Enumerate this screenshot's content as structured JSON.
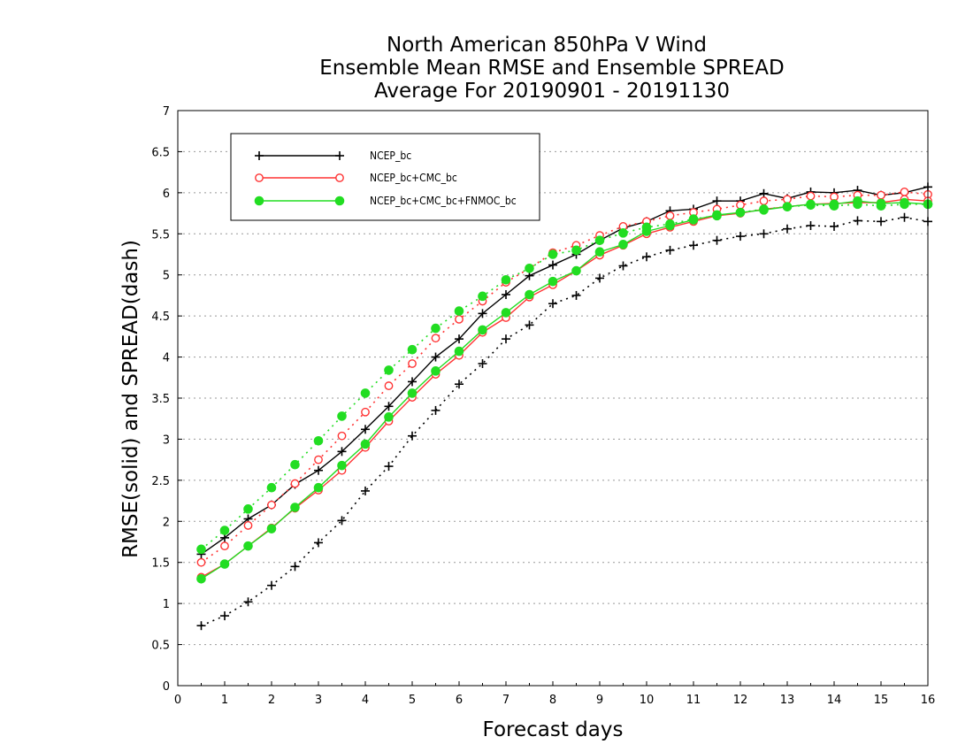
{
  "chart_data": {
    "type": "line",
    "title": [
      "North American 850hPa V Wind",
      "Ensemble Mean RMSE and Ensemble SPREAD",
      "Average For 20190901 - 20191130"
    ],
    "xlabel": "Forecast days",
    "ylabel": "RMSE(solid) and SPREAD(dash)",
    "xlim": [
      0,
      16
    ],
    "ylim": [
      0,
      7
    ],
    "x_ticks": [
      "0",
      "1",
      "2",
      "3",
      "4",
      "5",
      "6",
      "7",
      "8",
      "9",
      "10",
      "11",
      "12",
      "13",
      "14",
      "15",
      "16"
    ],
    "y_ticks": [
      "0",
      "0.5",
      "1",
      "1.5",
      "2",
      "2.5",
      "3",
      "3.5",
      "4",
      "4.5",
      "5",
      "5.5",
      "6",
      "6.5",
      "7"
    ],
    "grid": true,
    "legend_position": "top-left",
    "x": [
      0.5,
      1,
      1.5,
      2,
      2.5,
      3,
      3.5,
      4,
      4.5,
      5,
      5.5,
      6,
      6.5,
      7,
      7.5,
      8,
      8.5,
      9,
      9.5,
      10,
      10.5,
      11,
      11.5,
      12,
      12.5,
      13,
      13.5,
      14,
      14.5,
      15,
      15.5,
      16
    ],
    "series": [
      {
        "name": "NCEP_bc",
        "color": "#000000",
        "marker": "plus",
        "rmse": [
          1.6,
          1.8,
          2.03,
          2.2,
          2.45,
          2.62,
          2.85,
          3.12,
          3.4,
          3.7,
          4.0,
          4.22,
          4.53,
          4.76,
          4.99,
          5.12,
          5.25,
          5.42,
          5.57,
          5.65,
          5.78,
          5.8,
          5.9,
          5.9,
          5.99,
          5.93,
          6.01,
          6.0,
          6.03,
          5.97,
          6.0,
          6.07
        ],
        "spread": [
          0.73,
          0.85,
          1.02,
          1.22,
          1.45,
          1.74,
          2.01,
          2.37,
          2.67,
          3.04,
          3.35,
          3.67,
          3.92,
          4.22,
          4.39,
          4.65,
          4.75,
          4.96,
          5.11,
          5.22,
          5.3,
          5.36,
          5.42,
          5.47,
          5.5,
          5.56,
          5.6,
          5.59,
          5.66,
          5.65,
          5.7,
          5.65
        ]
      },
      {
        "name": "NCEP_bc+CMC_bc",
        "color": "#ff3333",
        "marker": "open-circle",
        "rmse": [
          1.32,
          1.48,
          1.7,
          1.92,
          2.16,
          2.38,
          2.62,
          2.9,
          3.22,
          3.51,
          3.79,
          4.02,
          4.3,
          4.48,
          4.73,
          4.88,
          5.05,
          5.24,
          5.36,
          5.5,
          5.58,
          5.65,
          5.72,
          5.75,
          5.8,
          5.83,
          5.86,
          5.87,
          5.88,
          5.88,
          5.92,
          5.9
        ],
        "spread": [
          1.5,
          1.7,
          1.95,
          2.2,
          2.46,
          2.75,
          3.04,
          3.33,
          3.65,
          3.92,
          4.23,
          4.46,
          4.68,
          4.91,
          5.08,
          5.27,
          5.36,
          5.48,
          5.59,
          5.65,
          5.72,
          5.76,
          5.8,
          5.85,
          5.9,
          5.92,
          5.96,
          5.95,
          5.97,
          5.97,
          6.01,
          5.98
        ]
      },
      {
        "name": "NCEP_bc+CMC_bc+FNMOC_bc",
        "color": "#22dd22",
        "marker": "filled-circle",
        "rmse": [
          1.3,
          1.48,
          1.7,
          1.91,
          2.17,
          2.41,
          2.68,
          2.94,
          3.27,
          3.56,
          3.83,
          4.07,
          4.33,
          4.54,
          4.76,
          4.92,
          5.05,
          5.28,
          5.37,
          5.53,
          5.6,
          5.67,
          5.73,
          5.76,
          5.79,
          5.83,
          5.86,
          5.86,
          5.9,
          5.87,
          5.88,
          5.86
        ],
        "spread": [
          1.66,
          1.89,
          2.15,
          2.41,
          2.69,
          2.98,
          3.28,
          3.56,
          3.84,
          4.09,
          4.35,
          4.56,
          4.74,
          4.94,
          5.08,
          5.25,
          5.3,
          5.42,
          5.51,
          5.58,
          5.62,
          5.68,
          5.72,
          5.76,
          5.8,
          5.83,
          5.85,
          5.84,
          5.86,
          5.84,
          5.86,
          5.86
        ]
      }
    ]
  }
}
